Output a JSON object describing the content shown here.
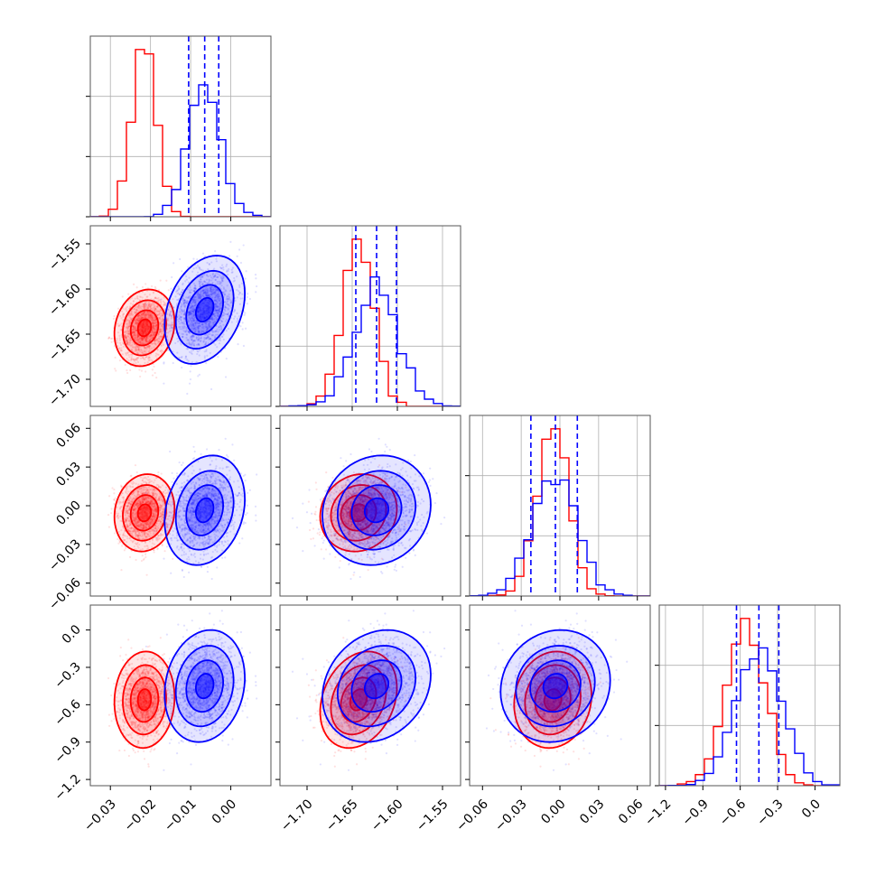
{
  "colors": {
    "red": "#ff0000",
    "blue": "#0000ff",
    "grid": "#b0b0b0",
    "frame": "#555555"
  },
  "chart_data": {
    "type": "corner",
    "grid": true,
    "parameters": [
      {
        "id": "p0",
        "range": [
          -0.035,
          0.01
        ],
        "ticks": [
          -0.03,
          -0.02,
          -0.01,
          0.0
        ],
        "tick_labels": [
          "−0.03",
          "−0.02",
          "−0.01",
          "0.00"
        ]
      },
      {
        "id": "p1",
        "range": [
          -1.73,
          -1.53
        ],
        "ticks": [
          -1.7,
          -1.65,
          -1.6,
          -1.55
        ],
        "tick_labels": [
          "−1.70",
          "−1.65",
          "−1.60",
          "−1.55"
        ]
      },
      {
        "id": "p2",
        "range": [
          -0.07,
          0.07
        ],
        "ticks": [
          -0.06,
          -0.03,
          0.0,
          0.03,
          0.06
        ],
        "tick_labels": [
          "−0.06",
          "−0.03",
          "0.00",
          "0.03",
          "0.06"
        ]
      },
      {
        "id": "p3",
        "range": [
          -1.25,
          0.2
        ],
        "ticks": [
          -1.2,
          -0.9,
          -0.6,
          -0.3,
          0.0
        ],
        "tick_labels": [
          "−1.2",
          "−0.9",
          "−0.6",
          "−0.3",
          "0.0"
        ]
      }
    ],
    "series": [
      {
        "color": "red",
        "means": [
          -0.0215,
          -1.643,
          -0.0055,
          -0.56
        ],
        "stds": [
          0.003,
          0.017,
          0.012,
          0.155
        ],
        "correlations": [
          [
            0,
            1,
            0.15
          ],
          [
            0,
            2,
            0.1
          ],
          [
            0,
            3,
            0.05
          ],
          [
            1,
            2,
            0.1
          ],
          [
            1,
            3,
            0.25
          ],
          [
            2,
            3,
            0.1
          ]
        ]
      },
      {
        "color": "blue",
        "means": [
          -0.0065,
          -1.623,
          -0.0035,
          -0.45
        ],
        "stds": [
          0.004,
          0.024,
          0.017,
          0.18
        ],
        "correlations": [
          [
            0,
            1,
            0.3
          ],
          [
            0,
            2,
            0.2
          ],
          [
            0,
            3,
            0.15
          ],
          [
            1,
            2,
            0.1
          ],
          [
            1,
            3,
            0.2
          ],
          [
            2,
            3,
            0.1
          ]
        ]
      }
    ],
    "quantile_lines": {
      "color": "blue",
      "style": "dashed",
      "values": [
        [
          -0.0105,
          -0.0065,
          -0.003
        ],
        [
          -1.646,
          -1.623,
          -1.601
        ],
        [
          -0.0225,
          -0.0035,
          0.0135
        ],
        [
          -0.63,
          -0.45,
          -0.29
        ]
      ]
    }
  }
}
